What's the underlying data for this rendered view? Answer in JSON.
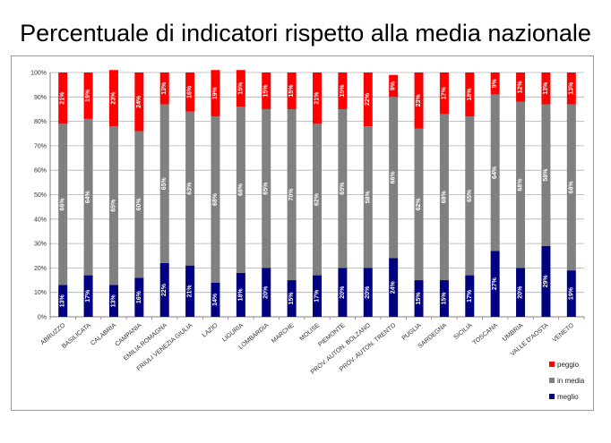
{
  "title": "Percentuale di indicatori rispetto alla media nazionale",
  "colors": {
    "peggio": "#FF0000",
    "in_media": "#808080",
    "meglio": "#000080",
    "grid": "#b0b0b0",
    "axis": "#808080"
  },
  "chart_data": {
    "type": "bar",
    "stacked": true,
    "title": "Percentuale di indicatori rispetto alla media nazionale",
    "xlabel": "",
    "ylabel": "",
    "ylim": [
      0,
      100
    ],
    "yticks": [
      "0%",
      "10%",
      "20%",
      "30%",
      "40%",
      "50%",
      "60%",
      "70%",
      "80%",
      "90%",
      "100%"
    ],
    "grid": true,
    "legend_position": "bottom-right",
    "categories": [
      "ABRUZZO",
      "BASILICATA",
      "CALABRIA",
      "CAMPANIA",
      "EMILIA ROMAGNA",
      "FRIULI VENEZIA GIULIA",
      "LAZIO",
      "LIGURIA",
      "LOMBARDIA",
      "MARCHE",
      "MOLISE",
      "PIEMONTE",
      "PROV. AUTON. BOLZANO",
      "PROV. AUTON. TRENTO",
      "PUGLIA",
      "SARDEGNA",
      "SICILIA",
      "TOSCANA",
      "UMBRIA",
      "VALLE D'AOSTA",
      "VENETO"
    ],
    "series": [
      {
        "name": "meglio",
        "values": [
          13,
          17,
          13,
          16,
          22,
          21,
          14,
          18,
          20,
          15,
          17,
          20,
          20,
          24,
          15,
          15,
          17,
          27,
          20,
          29,
          19
        ]
      },
      {
        "name": "in media",
        "values": [
          66,
          64,
          65,
          60,
          65,
          63,
          68,
          68,
          65,
          70,
          62,
          65,
          58,
          66,
          62,
          68,
          65,
          64,
          68,
          58,
          68
        ]
      },
      {
        "name": "peggio",
        "values": [
          21,
          19,
          23,
          24,
          13,
          16,
          19,
          15,
          15,
          15,
          21,
          15,
          22,
          9,
          23,
          17,
          18,
          9,
          12,
          13,
          13
        ]
      }
    ],
    "legend": [
      "peggio",
      "in media",
      "meglio"
    ]
  }
}
